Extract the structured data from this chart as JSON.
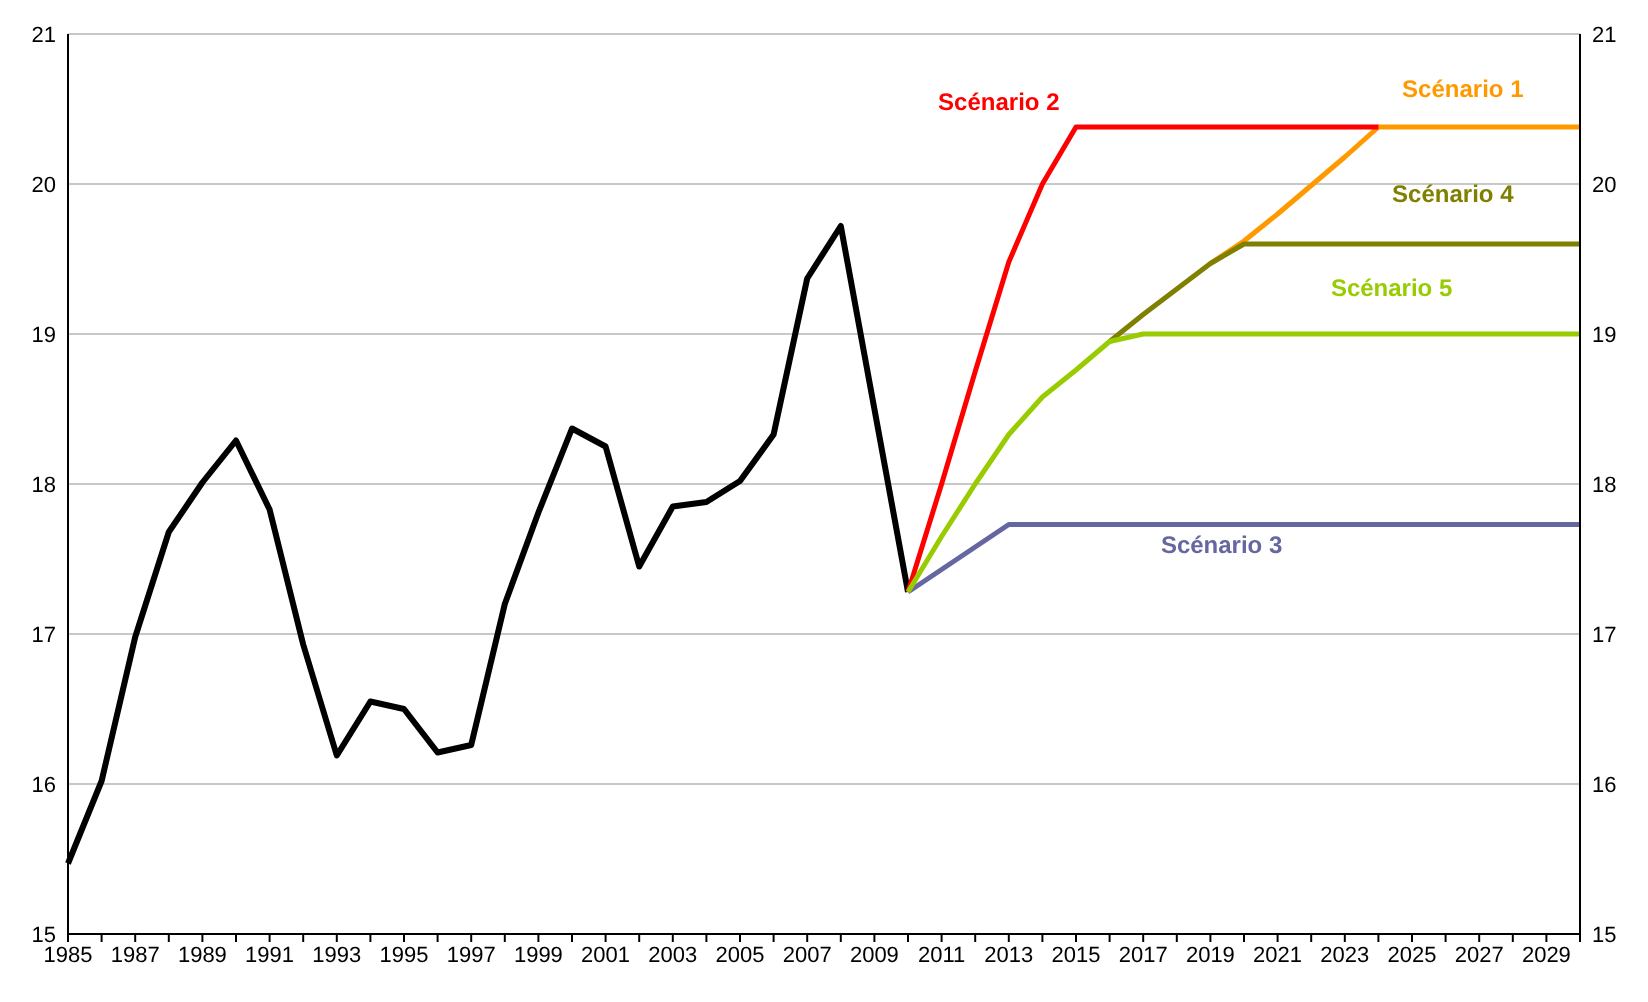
{
  "chart_data": {
    "type": "line",
    "categories": [
      "1985",
      null,
      "1987",
      null,
      "1989",
      null,
      "1991",
      null,
      "1993",
      null,
      "1995",
      null,
      "1997",
      null,
      "1999",
      null,
      "2001",
      null,
      "2003",
      null,
      "2005",
      null,
      "2007",
      null,
      "2009",
      null,
      "2011",
      null,
      "2013",
      null,
      "2015",
      null,
      "2017",
      null,
      "2019",
      null,
      "2021",
      null,
      "2023",
      null,
      "2025",
      null,
      "2027",
      null,
      "2029",
      null
    ],
    "series": [
      {
        "color": "#000000",
        "values": [
          15.47,
          16.02,
          16.98,
          17.68,
          18.01,
          18.29,
          17.83,
          16.93,
          16.19,
          16.55,
          16.5,
          16.21,
          16.26,
          17.2,
          17.81,
          18.37,
          18.25,
          17.45,
          17.85,
          17.88,
          18.02,
          18.33,
          19.37,
          19.72,
          18.5,
          17.28,
          null,
          null,
          null,
          null,
          null,
          null,
          null,
          null,
          null,
          null,
          null,
          null,
          null,
          null,
          null,
          null,
          null,
          null,
          null,
          null
        ]
      },
      {
        "name": "Scénario 1",
        "color": "#ff9900",
        "values": [
          null,
          null,
          null,
          null,
          null,
          null,
          null,
          null,
          null,
          null,
          null,
          null,
          null,
          null,
          null,
          null,
          null,
          null,
          null,
          null,
          null,
          null,
          null,
          null,
          null,
          null,
          null,
          null,
          null,
          null,
          null,
          null,
          null,
          null,
          19.47,
          19.62,
          19.8,
          19.99,
          20.18,
          20.38,
          20.38,
          20.38,
          20.38,
          20.38,
          20.38,
          20.38
        ]
      },
      {
        "name": "Scénario 2",
        "color": "#ff0000",
        "values": [
          null,
          null,
          null,
          null,
          null,
          null,
          null,
          null,
          null,
          null,
          null,
          null,
          null,
          null,
          null,
          null,
          null,
          null,
          null,
          null,
          null,
          null,
          null,
          null,
          null,
          17.28,
          18.0,
          18.75,
          19.48,
          20.0,
          20.38,
          20.38,
          20.38,
          20.38,
          20.38,
          20.38,
          20.38,
          20.38,
          20.38,
          20.38,
          null,
          null,
          null,
          null,
          null,
          null
        ]
      },
      {
        "name": "Scénario 3",
        "color": "#6666a0",
        "values": [
          null,
          null,
          null,
          null,
          null,
          null,
          null,
          null,
          null,
          null,
          null,
          null,
          null,
          null,
          null,
          null,
          null,
          null,
          null,
          null,
          null,
          null,
          null,
          null,
          null,
          17.28,
          17.43,
          17.58,
          17.73,
          17.73,
          17.73,
          17.73,
          17.73,
          17.73,
          17.73,
          17.73,
          17.73,
          17.73,
          17.73,
          17.73,
          17.73,
          17.73,
          17.73,
          17.73,
          17.73,
          17.73
        ]
      },
      {
        "name": "Scénario 4",
        "color": "#808000",
        "values": [
          null,
          null,
          null,
          null,
          null,
          null,
          null,
          null,
          null,
          null,
          null,
          null,
          null,
          null,
          null,
          null,
          null,
          null,
          null,
          null,
          null,
          null,
          null,
          null,
          null,
          null,
          null,
          null,
          null,
          null,
          null,
          18.95,
          19.13,
          19.3,
          19.47,
          19.6,
          19.6,
          19.6,
          19.6,
          19.6,
          19.6,
          19.6,
          19.6,
          19.6,
          19.6,
          19.6
        ]
      },
      {
        "name": "Scénario 5",
        "color": "#99cc00",
        "values": [
          null,
          null,
          null,
          null,
          null,
          null,
          null,
          null,
          null,
          null,
          null,
          null,
          null,
          null,
          null,
          null,
          null,
          null,
          null,
          null,
          null,
          null,
          null,
          null,
          null,
          17.28,
          17.65,
          18.0,
          18.33,
          18.58,
          18.76,
          18.95,
          19.0,
          19.0,
          19.0,
          19.0,
          19.0,
          19.0,
          19.0,
          19.0,
          19.0,
          19.0,
          19.0,
          19.0,
          19.0,
          19.0
        ]
      }
    ],
    "ylim": [
      15,
      21
    ],
    "yticks": [
      15,
      16,
      17,
      18,
      19,
      20,
      21
    ],
    "y2lim": [
      15,
      21
    ],
    "y2ticks": [
      15,
      16,
      17,
      18,
      19,
      20,
      21
    ],
    "grid": "y",
    "marker": "none",
    "line_style": "solid"
  }
}
